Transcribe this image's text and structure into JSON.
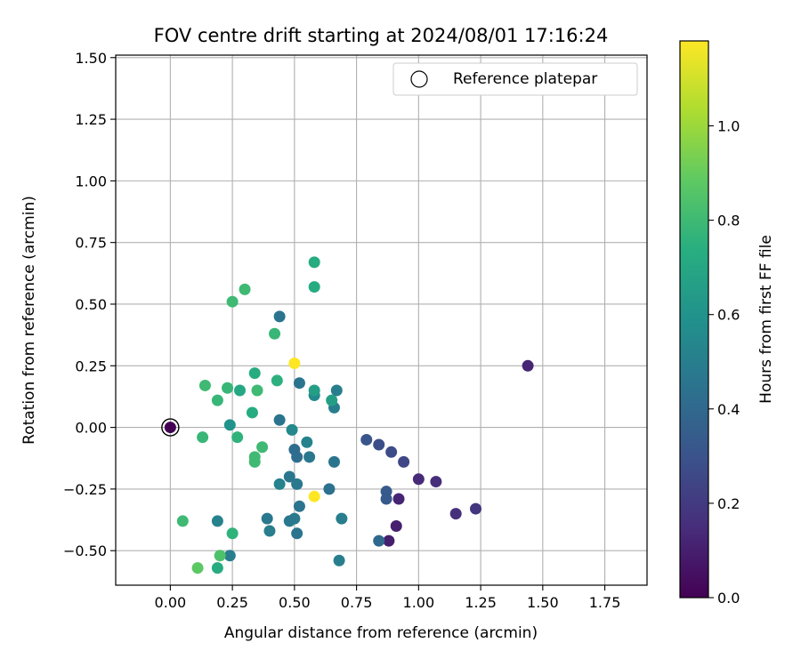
{
  "chart_data": {
    "type": "scatter",
    "title": "FOV centre drift starting at 2024/08/01 17:16:24",
    "xlabel": "Angular distance from reference (arcmin)",
    "ylabel": "Rotation from reference (arcmin)",
    "xlim": [
      -0.22,
      1.92
    ],
    "ylim": [
      -0.64,
      1.51
    ],
    "xticks": [
      "0.00",
      "0.25",
      "0.50",
      "0.75",
      "1.00",
      "1.25",
      "1.50",
      "1.75"
    ],
    "xtick_values": [
      0,
      0.25,
      0.5,
      0.75,
      1.0,
      1.25,
      1.5,
      1.75
    ],
    "yticks": [
      "−0.50",
      "−0.25",
      "0.00",
      "0.25",
      "0.50",
      "0.75",
      "1.00",
      "1.25",
      "1.50"
    ],
    "ytick_values": [
      -0.5,
      -0.25,
      0,
      0.25,
      0.5,
      0.75,
      1.0,
      1.25,
      1.5
    ],
    "grid": true,
    "legend": {
      "position": "top-right",
      "entries": [
        "Reference platepar"
      ]
    },
    "reference_point": {
      "x": 0.0,
      "y": 0.0
    },
    "colorbar": {
      "label": "Hours from first FF file",
      "colormap": "viridis",
      "range": [
        0,
        1.18
      ],
      "ticks": [
        "0.0",
        "0.2",
        "0.4",
        "0.6",
        "0.8",
        "1.0"
      ],
      "tick_values": [
        0,
        0.2,
        0.4,
        0.6,
        0.8,
        1.0
      ]
    },
    "points": [
      {
        "x": 0.0,
        "y": 0.0,
        "c": 0.0
      },
      {
        "x": 1.44,
        "y": 0.25,
        "c": 0.12
      },
      {
        "x": 0.88,
        "y": -0.46,
        "c": 0.1
      },
      {
        "x": 0.91,
        "y": -0.4,
        "c": 0.1
      },
      {
        "x": 0.92,
        "y": -0.29,
        "c": 0.12
      },
      {
        "x": 1.0,
        "y": -0.21,
        "c": 0.14
      },
      {
        "x": 1.07,
        "y": -0.22,
        "c": 0.15
      },
      {
        "x": 1.15,
        "y": -0.35,
        "c": 0.16
      },
      {
        "x": 1.23,
        "y": -0.33,
        "c": 0.18
      },
      {
        "x": 0.94,
        "y": -0.14,
        "c": 0.25
      },
      {
        "x": 0.89,
        "y": -0.1,
        "c": 0.27
      },
      {
        "x": 0.84,
        "y": -0.07,
        "c": 0.28
      },
      {
        "x": 0.79,
        "y": -0.05,
        "c": 0.31
      },
      {
        "x": 0.87,
        "y": -0.26,
        "c": 0.33
      },
      {
        "x": 0.87,
        "y": -0.29,
        "c": 0.33
      },
      {
        "x": 0.84,
        "y": -0.46,
        "c": 0.4
      },
      {
        "x": 0.67,
        "y": 0.15,
        "c": 0.5
      },
      {
        "x": 0.66,
        "y": 0.08,
        "c": 0.5
      },
      {
        "x": 0.66,
        "y": -0.14,
        "c": 0.45
      },
      {
        "x": 0.69,
        "y": -0.37,
        "c": 0.5
      },
      {
        "x": 0.68,
        "y": -0.54,
        "c": 0.5
      },
      {
        "x": 0.64,
        "y": -0.25,
        "c": 0.44
      },
      {
        "x": 0.58,
        "y": 0.13,
        "c": 0.55
      },
      {
        "x": 0.58,
        "y": 0.15,
        "c": 0.66
      },
      {
        "x": 0.65,
        "y": 0.11,
        "c": 0.66
      },
      {
        "x": 0.56,
        "y": -0.12,
        "c": 0.47
      },
      {
        "x": 0.55,
        "y": -0.06,
        "c": 0.52
      },
      {
        "x": 0.52,
        "y": 0.18,
        "c": 0.45
      },
      {
        "x": 0.5,
        "y": -0.09,
        "c": 0.42
      },
      {
        "x": 0.51,
        "y": -0.12,
        "c": 0.42
      },
      {
        "x": 0.51,
        "y": -0.23,
        "c": 0.47
      },
      {
        "x": 0.52,
        "y": -0.32,
        "c": 0.45
      },
      {
        "x": 0.51,
        "y": -0.43,
        "c": 0.45
      },
      {
        "x": 0.49,
        "y": -0.01,
        "c": 0.55
      },
      {
        "x": 0.48,
        "y": -0.2,
        "c": 0.46
      },
      {
        "x": 0.5,
        "y": -0.37,
        "c": 0.48
      },
      {
        "x": 0.48,
        "y": -0.38,
        "c": 0.47
      },
      {
        "x": 0.44,
        "y": 0.45,
        "c": 0.45
      },
      {
        "x": 0.44,
        "y": 0.03,
        "c": 0.45
      },
      {
        "x": 0.44,
        "y": -0.23,
        "c": 0.52
      },
      {
        "x": 0.39,
        "y": -0.37,
        "c": 0.47
      },
      {
        "x": 0.4,
        "y": -0.42,
        "c": 0.5
      },
      {
        "x": 0.24,
        "y": -0.52,
        "c": 0.5
      },
      {
        "x": 0.24,
        "y": 0.01,
        "c": 0.6
      },
      {
        "x": 0.19,
        "y": -0.38,
        "c": 0.52
      },
      {
        "x": 0.58,
        "y": 0.67,
        "c": 0.72
      },
      {
        "x": 0.58,
        "y": 0.57,
        "c": 0.72
      },
      {
        "x": 0.42,
        "y": 0.38,
        "c": 0.78
      },
      {
        "x": 0.43,
        "y": 0.19,
        "c": 0.75
      },
      {
        "x": 0.5,
        "y": 0.26,
        "c": 1.18
      },
      {
        "x": 0.58,
        "y": -0.28,
        "c": 1.18
      },
      {
        "x": 0.3,
        "y": 0.56,
        "c": 0.8
      },
      {
        "x": 0.25,
        "y": 0.51,
        "c": 0.8
      },
      {
        "x": 0.34,
        "y": 0.22,
        "c": 0.72
      },
      {
        "x": 0.35,
        "y": 0.15,
        "c": 0.8
      },
      {
        "x": 0.33,
        "y": 0.06,
        "c": 0.72
      },
      {
        "x": 0.28,
        "y": 0.15,
        "c": 0.7
      },
      {
        "x": 0.23,
        "y": 0.16,
        "c": 0.78
      },
      {
        "x": 0.14,
        "y": 0.17,
        "c": 0.8
      },
      {
        "x": 0.19,
        "y": 0.11,
        "c": 0.78
      },
      {
        "x": 0.27,
        "y": -0.04,
        "c": 0.76
      },
      {
        "x": 0.13,
        "y": -0.04,
        "c": 0.78
      },
      {
        "x": 0.37,
        "y": -0.08,
        "c": 0.8
      },
      {
        "x": 0.34,
        "y": -0.12,
        "c": 0.8
      },
      {
        "x": 0.34,
        "y": -0.14,
        "c": 0.8
      },
      {
        "x": 0.05,
        "y": -0.38,
        "c": 0.8
      },
      {
        "x": 0.25,
        "y": -0.43,
        "c": 0.76
      },
      {
        "x": 0.2,
        "y": -0.52,
        "c": 0.84
      },
      {
        "x": 0.11,
        "y": -0.57,
        "c": 0.88
      },
      {
        "x": 0.19,
        "y": -0.57,
        "c": 0.72
      }
    ]
  }
}
